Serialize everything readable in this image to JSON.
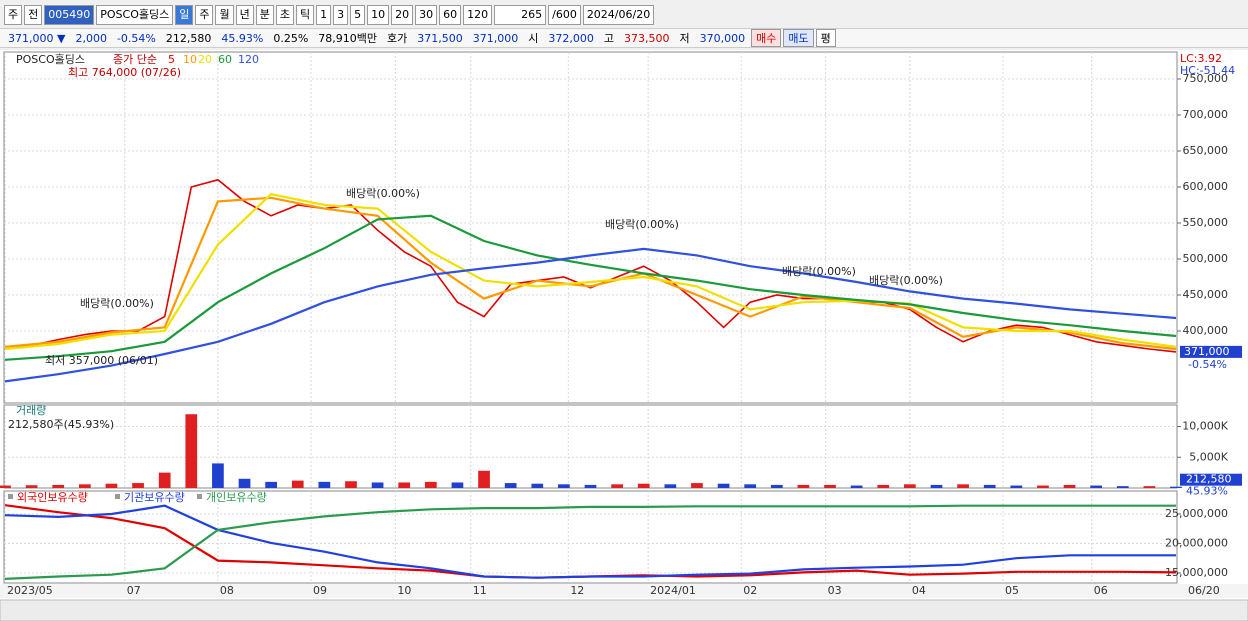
{
  "toolbar": [
    "주",
    "전",
    "005490",
    "POSCO홀딩스",
    "일",
    "주",
    "월",
    "년",
    "분",
    "초",
    "틱",
    "1",
    "3",
    "5",
    "10",
    "20",
    "30",
    "60",
    "120",
    "265",
    "/600",
    "2024/06/20"
  ],
  "quote": [
    {
      "text": "371,000 ▼",
      "color": "#0030c0"
    },
    {
      "text": "2,000",
      "color": "#0030c0"
    },
    {
      "text": "-0.54%",
      "color": "#0030c0"
    },
    {
      "text": "212,580",
      "color": "#000000"
    },
    {
      "text": "45.93%",
      "color": "#0030c0"
    },
    {
      "text": "0.25%",
      "color": "#000000"
    },
    {
      "text": "78,910백만",
      "color": "#000000"
    },
    {
      "text": "호가",
      "color": "#000000"
    },
    {
      "text": "371,500",
      "color": "#0030c0"
    },
    {
      "text": "371,000",
      "color": "#0030c0"
    },
    {
      "text": "시",
      "color": "#000000"
    },
    {
      "text": "372,000",
      "color": "#0030c0"
    },
    {
      "text": "고",
      "color": "#000000"
    },
    {
      "text": "373,500",
      "color": "#d00000"
    },
    {
      "text": "저",
      "color": "#000000"
    },
    {
      "text": "370,000",
      "color": "#0030c0"
    },
    {
      "text": "매수",
      "color": "#d00000"
    },
    {
      "text": "매도",
      "color": "#0030c0"
    },
    {
      "text": "평",
      "color": "#000000"
    }
  ],
  "chart_data": [
    {
      "type": "line",
      "title": "POSCO홀딩스",
      "legend_title": "종가 단순",
      "grid": true,
      "xlim": [
        0,
        264
      ],
      "xticks": [
        {
          "value": 0,
          "label": "2023/05"
        },
        {
          "value": 27,
          "label": "07"
        },
        {
          "value": 48,
          "label": "08"
        },
        {
          "value": 69,
          "label": "09"
        },
        {
          "value": 88,
          "label": "10"
        },
        {
          "value": 105,
          "label": "11"
        },
        {
          "value": 127,
          "label": "12"
        },
        {
          "value": 145,
          "label": "2024/01"
        },
        {
          "value": 166,
          "label": "02"
        },
        {
          "value": 185,
          "label": "03"
        },
        {
          "value": 204,
          "label": "04"
        },
        {
          "value": 225,
          "label": "05"
        },
        {
          "value": 245,
          "label": "06"
        }
      ],
      "x_end_label": "06/20",
      "ylim": [
        300000,
        787500
      ],
      "yticks": [
        {
          "value": 400000,
          "label": "400,000"
        },
        {
          "value": 450000,
          "label": "450,000"
        },
        {
          "value": 500000,
          "label": "500,000"
        },
        {
          "value": 550000,
          "label": "550,000"
        },
        {
          "value": 600000,
          "label": "600,000"
        },
        {
          "value": 650000,
          "label": "650,000"
        },
        {
          "value": 700000,
          "label": "700,000"
        },
        {
          "value": 750000,
          "label": "750,000"
        }
      ],
      "lc": "LC:3.92",
      "hc": "HC:-51.44",
      "last_label": "371,000",
      "change_label": "-0.54%",
      "annotations": [
        "최고 764,000 (07/26)",
        "최저 357,000 (06/01)",
        "배당락(0.00%)",
        "배당락(0.00%)",
        "배당락(0.00%)",
        "배당락(0.00%)",
        "배당락(0.00%)"
      ],
      "series": [
        {
          "name": "5",
          "color": "#e00000",
          "values": [
            375000,
            380000,
            388000,
            395000,
            400000,
            400000,
            420000,
            600000,
            610000,
            580000,
            560000,
            575000,
            570000,
            575000,
            540000,
            510000,
            490000,
            440000,
            420000,
            465000,
            470000,
            475000,
            460000,
            475000,
            490000,
            470000,
            440000,
            405000,
            440000,
            450000,
            445000,
            445000,
            440000,
            440000,
            430000,
            405000,
            385000,
            400000,
            408000,
            405000,
            395000,
            385000,
            380000,
            375000,
            371000
          ]
        },
        {
          "name": "10",
          "color": "#ff9900",
          "values": [
            378000,
            385000,
            398000,
            405000,
            580000,
            585000,
            570000,
            560000,
            495000,
            445000,
            470000,
            462000,
            480000,
            450000,
            420000,
            448000,
            440000,
            432000,
            392000,
            405000,
            398000,
            383000,
            375000
          ]
        },
        {
          "name": "20",
          "color": "#f0e000",
          "values": [
            375000,
            382000,
            395000,
            400000,
            520000,
            590000,
            575000,
            570000,
            510000,
            470000,
            462000,
            468000,
            475000,
            462000,
            430000,
            440000,
            442000,
            438000,
            405000,
            400000,
            400000,
            388000,
            378000
          ]
        },
        {
          "name": "60",
          "color": "#1a9a3a",
          "values": [
            360000,
            365000,
            372000,
            385000,
            440000,
            480000,
            515000,
            555000,
            560000,
            525000,
            505000,
            492000,
            480000,
            470000,
            458000,
            450000,
            443000,
            437000,
            425000,
            415000,
            408000,
            400000,
            393000
          ]
        },
        {
          "name": "120",
          "color": "#3050e0",
          "values": [
            330000,
            340000,
            352000,
            368000,
            385000,
            410000,
            440000,
            462000,
            478000,
            487000,
            495000,
            505000,
            514000,
            505000,
            490000,
            480000,
            468000,
            455000,
            445000,
            438000,
            430000,
            424000,
            418000
          ]
        }
      ]
    },
    {
      "type": "bar",
      "title": "거래량",
      "subtitle": "212,580주(45.93%)",
      "last_label": "212,580",
      "change_label": "45.93%",
      "up_color": "#e02020",
      "down_color": "#2040d0",
      "ylim": [
        0,
        13500000
      ],
      "yticks": [
        {
          "value": 5000000,
          "label": "5,000K"
        },
        {
          "value": 10000000,
          "label": "10,000K"
        }
      ],
      "values": [
        400000,
        450000,
        500000,
        600000,
        700000,
        800000,
        2500000,
        12000000,
        4000000,
        1500000,
        1000000,
        1200000,
        1000000,
        1100000,
        900000,
        900000,
        1000000,
        900000,
        2800000,
        800000,
        700000,
        600000,
        500000,
        600000,
        700000,
        600000,
        800000,
        700000,
        600000,
        500000,
        500000,
        500000,
        400000,
        500000,
        600000,
        500000,
        600000,
        500000,
        400000,
        400000,
        500000,
        400000,
        300000,
        300000,
        212580
      ]
    },
    {
      "type": "line",
      "ylim": [
        13300000,
        28900000
      ],
      "yticks": [
        {
          "value": 15000000,
          "label": "15,000,000"
        },
        {
          "value": 20000000,
          "label": "20,000,000"
        },
        {
          "value": 25000000,
          "label": "25,000,000"
        }
      ],
      "series": [
        {
          "name": "외국인보유수량",
          "color": "#e00000",
          "values": [
            26500000,
            25300000,
            24300000,
            22600000,
            17100000,
            16800000,
            16300000,
            15800000,
            15400000,
            14400000,
            14200000,
            14400000,
            14600000,
            14400000,
            14600000,
            15100000,
            15400000,
            14700000,
            14900000,
            15200000,
            15200000,
            15200000,
            15100000
          ]
        },
        {
          "name": "기관보유수량",
          "color": "#2040e0",
          "values": [
            24800000,
            24500000,
            25000000,
            26400000,
            22300000,
            20100000,
            18600000,
            16800000,
            15800000,
            14400000,
            14200000,
            14400000,
            14400000,
            14700000,
            14900000,
            15600000,
            15900000,
            16100000,
            16400000,
            17500000,
            18000000,
            18000000,
            18000000
          ]
        },
        {
          "name": "개인보유수량",
          "color": "#2a9a50",
          "values": [
            14000000,
            14400000,
            14700000,
            15800000,
            22300000,
            23600000,
            24600000,
            25300000,
            25800000,
            26000000,
            26000000,
            26200000,
            26200000,
            26300000,
            26300000,
            26300000,
            26300000,
            26300000,
            26400000,
            26400000,
            26400000,
            26400000,
            26400000
          ]
        }
      ]
    }
  ]
}
